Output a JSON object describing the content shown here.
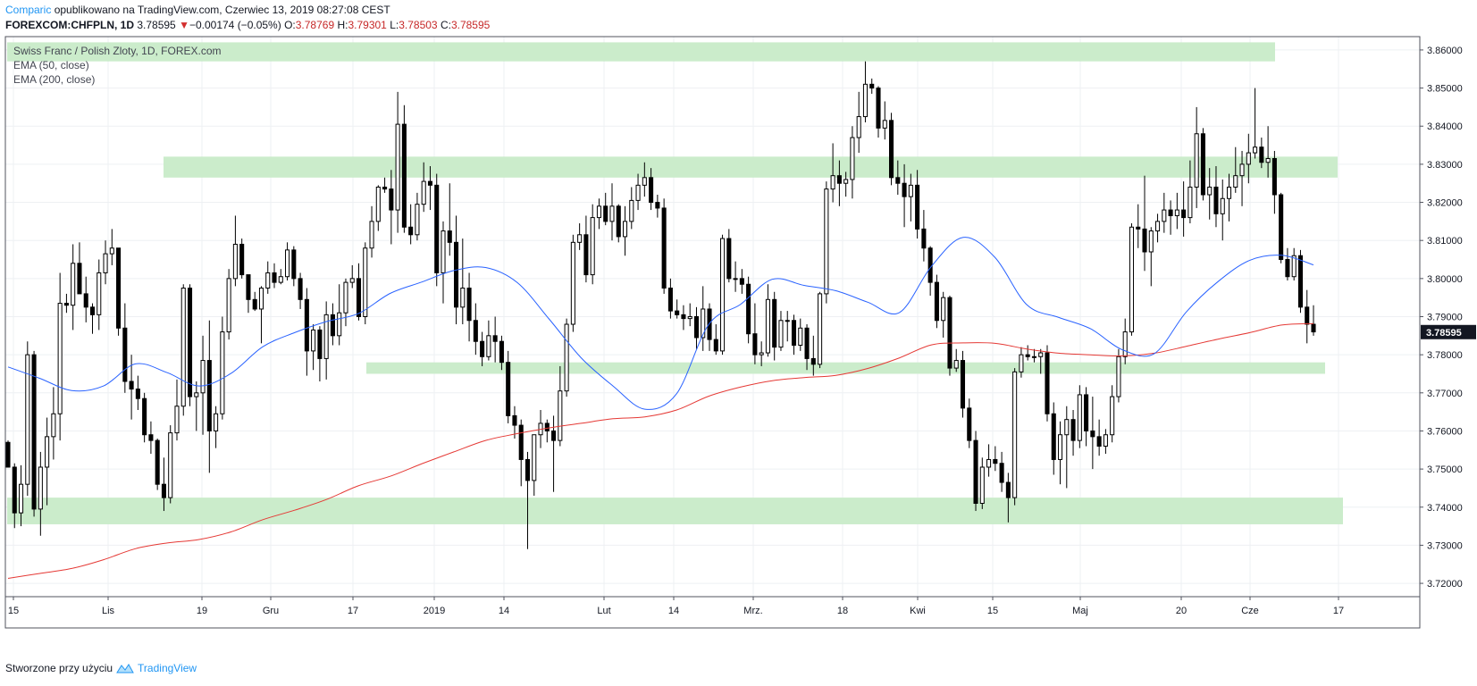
{
  "header": {
    "brand": "Comparic",
    "published": "opublikowano na TradingView.com, Czerwiec 13, 2019 08:27:08 CEST",
    "symbol": "FOREXCOM:CHFPLN, 1D",
    "last": "3.78595",
    "change_arrow": "▼",
    "change": "−0.00174 (−0.05%)",
    "o_label": "O:",
    "o_value": "3.78769",
    "h_label": "H:",
    "h_value": "3.79301",
    "l_label": "L:",
    "l_value": "3.78503",
    "c_label": "C:",
    "c_value": "3.78595"
  },
  "legend": {
    "title": "Swiss Franc / Polish Zloty, 1D, FOREX.com",
    "ema50": "EMA (50, close)",
    "ema200": "EMA (200, close)"
  },
  "price_tag": "3.78595",
  "footer": {
    "made_with": "Stworzone przy użyciu",
    "brand": "TradingView"
  },
  "colors": {
    "zone": "#c8ebc8",
    "ema50": "#2962ff",
    "ema200": "#e53935",
    "candle": "#000000",
    "grid": "#eef0f3"
  },
  "chart_data": {
    "type": "candlestick",
    "y_ticks": [
      "3.86000",
      "3.85000",
      "3.84000",
      "3.83000",
      "3.82000",
      "3.81000",
      "3.80000",
      "3.79000",
      "3.78000",
      "3.77000",
      "3.76000",
      "3.75000",
      "3.74000",
      "3.73000",
      "3.72000"
    ],
    "ylim": [
      3.7165,
      3.8635
    ],
    "x_ticks": [
      "15",
      "Lis",
      "19",
      "Gru",
      "17",
      "2019",
      "14",
      "Lut",
      "14",
      "Mrz.",
      "18",
      "Kwi",
      "15",
      "Maj",
      "20",
      "Cze",
      "17"
    ],
    "zones": [
      {
        "from": 3.857,
        "to": 3.862
      },
      {
        "from": 3.8265,
        "to": 3.832
      },
      {
        "from": 3.775,
        "to": 3.778
      },
      {
        "from": 3.7355,
        "to": 3.7425
      }
    ],
    "ema50": [
      3.7768,
      3.7738,
      3.7706,
      3.7718,
      3.7776,
      3.7753,
      3.7718,
      3.7751,
      3.7821,
      3.7858,
      3.7887,
      3.7908,
      3.7961,
      3.7991,
      3.8021,
      3.8029,
      3.7989,
      3.7893,
      3.7792,
      3.7718,
      3.7657,
      3.7698,
      3.7879,
      3.7932,
      3.7998,
      3.7982,
      3.7968,
      3.7938,
      3.7911,
      3.8032,
      3.8108,
      3.8055,
      3.7931,
      3.7898,
      3.7868,
      3.7813,
      3.7803,
      3.7912,
      3.7992,
      3.8048,
      3.8061,
      3.8036
    ],
    "ema200": [
      3.7213,
      3.7226,
      3.7239,
      3.7262,
      3.7291,
      3.7306,
      3.7315,
      3.7335,
      3.7367,
      3.7392,
      3.742,
      3.7456,
      3.7481,
      3.7514,
      3.7545,
      3.7575,
      3.7593,
      3.7608,
      3.762,
      3.7632,
      3.7637,
      3.7655,
      3.7691,
      3.7715,
      3.7732,
      3.774,
      3.7746,
      3.7764,
      3.7792,
      3.7826,
      3.7831,
      3.783,
      3.7815,
      3.7804,
      3.78,
      3.7797,
      3.7804,
      3.7822,
      3.7841,
      3.7858,
      3.7878,
      3.7882
    ],
    "ohlc": [
      [
        3.757,
        3.7575,
        3.7505,
        3.7505
      ],
      [
        3.7505,
        3.7515,
        3.7345,
        3.7385
      ],
      [
        3.7385,
        3.751,
        3.735,
        3.746
      ],
      [
        3.746,
        3.7835,
        3.743,
        3.78
      ],
      [
        3.78,
        3.781,
        3.7375,
        3.7395
      ],
      [
        3.7395,
        3.7545,
        3.7325,
        3.7505
      ],
      [
        3.7505,
        3.7635,
        3.7405,
        3.7585
      ],
      [
        3.7585,
        3.7715,
        3.7525,
        3.7645
      ],
      [
        3.7645,
        3.8015,
        3.7575,
        3.7935
      ],
      [
        3.7935,
        3.796,
        3.791,
        3.793
      ],
      [
        3.793,
        3.809,
        3.7865,
        3.804
      ],
      [
        3.804,
        3.8095,
        3.796,
        3.796
      ],
      [
        3.796,
        3.8005,
        3.7885,
        3.7925
      ],
      [
        3.7925,
        3.7935,
        3.7855,
        3.7905
      ],
      [
        3.7905,
        3.805,
        3.7865,
        3.8015
      ],
      [
        3.8015,
        3.81,
        3.7985,
        3.8065
      ],
      [
        3.8065,
        3.813,
        3.8035,
        3.808
      ],
      [
        3.808,
        3.808,
        3.785,
        3.787
      ],
      [
        3.787,
        3.7935,
        3.77,
        3.773
      ],
      [
        3.773,
        3.78,
        3.763,
        3.771
      ],
      [
        3.771,
        3.7745,
        3.7655,
        3.7685
      ],
      [
        3.7685,
        3.77,
        3.757,
        3.759
      ],
      [
        3.759,
        3.7625,
        3.754,
        3.7575
      ],
      [
        3.7575,
        3.758,
        3.7445,
        3.746
      ],
      [
        3.746,
        3.753,
        3.739,
        3.7425
      ],
      [
        3.7425,
        3.7615,
        3.741,
        3.7595
      ],
      [
        3.7595,
        3.7735,
        3.7575,
        3.7665
      ],
      [
        3.7665,
        3.7985,
        3.764,
        3.7975
      ],
      [
        3.7975,
        3.7985,
        3.7665,
        3.769
      ],
      [
        3.769,
        3.773,
        3.76,
        3.77
      ],
      [
        3.77,
        3.785,
        3.759,
        3.7785
      ],
      [
        3.7785,
        3.789,
        3.749,
        3.76
      ],
      [
        3.76,
        3.7665,
        3.7555,
        3.7645
      ],
      [
        3.7645,
        3.79,
        3.763,
        3.786
      ],
      [
        3.786,
        3.8025,
        3.784,
        3.8
      ],
      [
        3.8,
        3.8165,
        3.798,
        3.809
      ],
      [
        3.809,
        3.8105,
        3.8,
        3.801
      ],
      [
        3.801,
        3.801,
        3.791,
        3.7945
      ],
      [
        3.7945,
        3.7965,
        3.7915,
        3.792
      ],
      [
        3.792,
        3.798,
        3.783,
        3.7975
      ],
      [
        3.7975,
        3.8045,
        3.796,
        3.8015
      ],
      [
        3.8015,
        3.804,
        3.7975,
        3.799
      ],
      [
        3.799,
        3.8025,
        3.7985,
        3.8005
      ],
      [
        3.8005,
        3.8095,
        3.7995,
        3.8075
      ],
      [
        3.8075,
        3.8085,
        3.798,
        3.8
      ],
      [
        3.8,
        3.8015,
        3.792,
        3.7945
      ],
      [
        3.7945,
        3.7975,
        3.7745,
        3.781
      ],
      [
        3.781,
        3.788,
        3.776,
        3.7865
      ],
      [
        3.7865,
        3.7875,
        3.773,
        3.779
      ],
      [
        3.779,
        3.794,
        3.7735,
        3.7905
      ],
      [
        3.7905,
        3.7935,
        3.7825,
        3.785
      ],
      [
        3.785,
        3.7985,
        3.7825,
        3.791
      ],
      [
        3.791,
        3.8,
        3.7875,
        3.799
      ],
      [
        3.799,
        3.8035,
        3.7975,
        3.8
      ],
      [
        3.8,
        3.804,
        3.789,
        3.79
      ],
      [
        3.79,
        3.8095,
        3.788,
        3.808
      ],
      [
        3.808,
        3.819,
        3.8055,
        3.815
      ],
      [
        3.815,
        3.8245,
        3.8125,
        3.824
      ],
      [
        3.824,
        3.8265,
        3.8225,
        3.8235
      ],
      [
        3.8235,
        3.8285,
        3.809,
        3.818
      ],
      [
        3.818,
        3.849,
        3.812,
        3.8405
      ],
      [
        3.8405,
        3.8455,
        3.812,
        3.8135
      ],
      [
        3.8135,
        3.8195,
        3.809,
        3.8115
      ],
      [
        3.8115,
        3.8225,
        3.81,
        3.8195
      ],
      [
        3.8195,
        3.8305,
        3.8175,
        3.8255
      ],
      [
        3.8255,
        3.8295,
        3.818,
        3.8245
      ],
      [
        3.8245,
        3.8275,
        3.798,
        3.8015
      ],
      [
        3.8015,
        3.815,
        3.7935,
        3.8125
      ],
      [
        3.8125,
        3.825,
        3.806,
        3.8095
      ],
      [
        3.8095,
        3.8165,
        3.788,
        3.7925
      ],
      [
        3.7925,
        3.8105,
        3.788,
        3.7975
      ],
      [
        3.7975,
        3.8015,
        3.7835,
        3.789
      ],
      [
        3.789,
        3.7935,
        3.78,
        3.7835
      ],
      [
        3.7835,
        3.786,
        3.777,
        3.7795
      ],
      [
        3.7795,
        3.789,
        3.7785,
        3.785
      ],
      [
        3.785,
        3.79,
        3.778,
        3.7835
      ],
      [
        3.7835,
        3.785,
        3.776,
        3.778
      ],
      [
        3.778,
        3.781,
        3.762,
        3.764
      ],
      [
        3.764,
        3.7665,
        3.758,
        3.7615
      ],
      [
        3.7615,
        3.763,
        3.7455,
        3.7525
      ],
      [
        3.7525,
        3.7545,
        3.729,
        3.747
      ],
      [
        3.747,
        3.759,
        3.743,
        3.759
      ],
      [
        3.759,
        3.7655,
        3.7555,
        3.762
      ],
      [
        3.762,
        3.763,
        3.757,
        3.76
      ],
      [
        3.76,
        3.764,
        3.744,
        3.7575
      ],
      [
        3.7575,
        3.777,
        3.756,
        3.7705
      ],
      [
        3.7705,
        3.7895,
        3.769,
        3.788
      ],
      [
        3.788,
        3.8115,
        3.786,
        3.8095
      ],
      [
        3.8095,
        3.8145,
        3.8075,
        3.8115
      ],
      [
        3.8115,
        3.8165,
        3.799,
        3.801
      ],
      [
        3.801,
        3.8195,
        3.7985,
        3.816
      ],
      [
        3.816,
        3.821,
        3.813,
        3.819
      ],
      [
        3.819,
        3.8225,
        3.814,
        3.815
      ],
      [
        3.815,
        3.825,
        3.81,
        3.819
      ],
      [
        3.819,
        3.8195,
        3.8095,
        3.811
      ],
      [
        3.811,
        3.819,
        3.806,
        3.815
      ],
      [
        3.815,
        3.824,
        3.813,
        3.8205
      ],
      [
        3.8205,
        3.8275,
        3.818,
        3.8245
      ],
      [
        3.8245,
        3.8305,
        3.8215,
        3.8265
      ],
      [
        3.8265,
        3.829,
        3.818,
        3.82
      ],
      [
        3.82,
        3.822,
        3.816,
        3.8185
      ],
      [
        3.8185,
        3.821,
        3.796,
        3.7975
      ],
      [
        3.7975,
        3.8,
        3.7895,
        3.7915
      ],
      [
        3.7915,
        3.7945,
        3.7895,
        3.7905
      ],
      [
        3.7905,
        3.793,
        3.7865,
        3.7895
      ],
      [
        3.7895,
        3.7935,
        3.7875,
        3.79
      ],
      [
        3.79,
        3.7925,
        3.7815,
        3.7845
      ],
      [
        3.7845,
        3.798,
        3.781,
        3.792
      ],
      [
        3.792,
        3.7935,
        3.781,
        3.784
      ],
      [
        3.784,
        3.788,
        3.78,
        3.781
      ],
      [
        3.781,
        3.8115,
        3.78,
        3.8105
      ],
      [
        3.8105,
        3.813,
        3.799,
        3.8
      ],
      [
        3.8,
        3.8045,
        3.7965,
        3.8
      ],
      [
        3.8,
        3.8025,
        3.796,
        3.7985
      ],
      [
        3.7985,
        3.8005,
        3.783,
        3.7855
      ],
      [
        3.7855,
        3.7935,
        3.7775,
        3.78
      ],
      [
        3.78,
        3.7835,
        3.777,
        3.7805
      ],
      [
        3.7805,
        3.7985,
        3.7795,
        3.7945
      ],
      [
        3.7945,
        3.7965,
        3.7785,
        3.782
      ],
      [
        3.782,
        3.7915,
        3.781,
        3.789
      ],
      [
        3.789,
        3.7915,
        3.7835,
        3.789
      ],
      [
        3.789,
        3.7905,
        3.78,
        3.7825
      ],
      [
        3.7825,
        3.7895,
        3.781,
        3.787
      ],
      [
        3.787,
        3.788,
        3.776,
        3.779
      ],
      [
        3.779,
        3.785,
        3.7745,
        3.7775
      ],
      [
        3.7775,
        3.7965,
        3.7765,
        3.796
      ],
      [
        3.796,
        3.8255,
        3.7935,
        3.8235
      ],
      [
        3.8235,
        3.8355,
        3.82,
        3.827
      ],
      [
        3.827,
        3.831,
        3.819,
        3.825
      ],
      [
        3.825,
        3.828,
        3.8215,
        3.826
      ],
      [
        3.826,
        3.84,
        3.821,
        3.837
      ],
      [
        3.837,
        3.849,
        3.833,
        3.8425
      ],
      [
        3.8425,
        3.857,
        3.841,
        3.851
      ],
      [
        3.851,
        3.8525,
        3.8485,
        3.85
      ],
      [
        3.85,
        3.8505,
        3.837,
        3.8395
      ],
      [
        3.8395,
        3.8465,
        3.8365,
        3.8415
      ],
      [
        3.8415,
        3.8435,
        3.8245,
        3.8265
      ],
      [
        3.8265,
        3.831,
        3.822,
        3.825
      ],
      [
        3.825,
        3.83,
        3.8135,
        3.8215
      ],
      [
        3.8215,
        3.8275,
        3.815,
        3.8245
      ],
      [
        3.8245,
        3.8285,
        3.8105,
        3.813
      ],
      [
        3.813,
        3.818,
        3.8045,
        3.808
      ],
      [
        3.808,
        3.8085,
        3.7955,
        3.799
      ],
      [
        3.799,
        3.801,
        3.787,
        3.789
      ],
      [
        3.789,
        3.7965,
        3.7845,
        3.795
      ],
      [
        3.795,
        3.7955,
        3.7745,
        3.7765
      ],
      [
        3.7765,
        3.7815,
        3.7755,
        3.7785
      ],
      [
        3.7785,
        3.781,
        3.7635,
        3.766
      ],
      [
        3.766,
        3.7685,
        3.7555,
        3.7575
      ],
      [
        3.7575,
        3.76,
        3.739,
        3.741
      ],
      [
        3.741,
        3.753,
        3.7395,
        3.7505
      ],
      [
        3.7505,
        3.7565,
        3.748,
        3.7525
      ],
      [
        3.7525,
        3.756,
        3.7495,
        3.7515
      ],
      [
        3.7515,
        3.7545,
        3.744,
        3.7465
      ],
      [
        3.7465,
        3.749,
        3.736,
        3.7425
      ],
      [
        3.7425,
        3.7765,
        3.7405,
        3.7755
      ],
      [
        3.7755,
        3.782,
        3.774,
        3.78
      ],
      [
        3.78,
        3.7825,
        3.7785,
        3.7795
      ],
      [
        3.7795,
        3.7815,
        3.778,
        3.7795
      ],
      [
        3.7795,
        3.7815,
        3.775,
        3.7805
      ],
      [
        3.7805,
        3.7825,
        3.7625,
        3.7645
      ],
      [
        3.7645,
        3.7675,
        3.7485,
        3.7525
      ],
      [
        3.7525,
        3.7625,
        3.746,
        3.759
      ],
      [
        3.759,
        3.7665,
        3.745,
        3.763
      ],
      [
        3.763,
        3.7655,
        3.7535,
        3.7575
      ],
      [
        3.7575,
        3.772,
        3.7555,
        3.7695
      ],
      [
        3.7695,
        3.7715,
        3.756,
        3.76
      ],
      [
        3.76,
        3.769,
        3.75,
        3.7585
      ],
      [
        3.7585,
        3.763,
        3.7535,
        3.756
      ],
      [
        3.756,
        3.7605,
        3.754,
        3.759
      ],
      [
        3.759,
        3.772,
        3.757,
        3.769
      ],
      [
        3.769,
        3.7815,
        3.7675,
        3.7795
      ],
      [
        3.7795,
        3.7895,
        3.7775,
        3.786
      ],
      [
        3.786,
        3.8145,
        3.785,
        3.8135
      ],
      [
        3.8135,
        3.8195,
        3.808,
        3.813
      ],
      [
        3.813,
        3.827,
        3.802,
        3.807
      ],
      [
        3.807,
        3.8135,
        3.798,
        3.8125
      ],
      [
        3.8125,
        3.817,
        3.8095,
        3.815
      ],
      [
        3.815,
        3.8225,
        3.812,
        3.818
      ],
      [
        3.818,
        3.8205,
        3.8115,
        3.8165
      ],
      [
        3.8165,
        3.8225,
        3.813,
        3.818
      ],
      [
        3.818,
        3.8255,
        3.811,
        3.816
      ],
      [
        3.816,
        3.831,
        3.8145,
        3.824
      ],
      [
        3.824,
        3.845,
        3.8185,
        3.838
      ],
      [
        3.838,
        3.8395,
        3.8205,
        3.822
      ],
      [
        3.822,
        3.829,
        3.8155,
        3.824
      ],
      [
        3.824,
        3.8295,
        3.8135,
        3.817
      ],
      [
        3.817,
        3.826,
        3.81,
        3.821
      ],
      [
        3.821,
        3.8275,
        3.815,
        3.824
      ],
      [
        3.824,
        3.8345,
        3.8225,
        3.827
      ],
      [
        3.827,
        3.8335,
        3.819,
        3.83
      ],
      [
        3.83,
        3.838,
        3.825,
        3.833
      ],
      [
        3.833,
        3.85,
        3.8315,
        3.8345
      ],
      [
        3.8345,
        3.837,
        3.829,
        3.8305
      ],
      [
        3.8305,
        3.84,
        3.8265,
        3.8315
      ],
      [
        3.8315,
        3.8335,
        3.817,
        3.822
      ],
      [
        3.822,
        3.8225,
        3.804,
        3.805
      ],
      [
        3.805,
        3.808,
        3.7995,
        3.8005
      ],
      [
        3.8005,
        3.808,
        3.7995,
        3.806
      ],
      [
        3.806,
        3.8075,
        3.791,
        3.7925
      ],
      [
        3.7925,
        3.797,
        3.783,
        3.788
      ],
      [
        3.788,
        3.793,
        3.785,
        3.786
      ]
    ]
  }
}
